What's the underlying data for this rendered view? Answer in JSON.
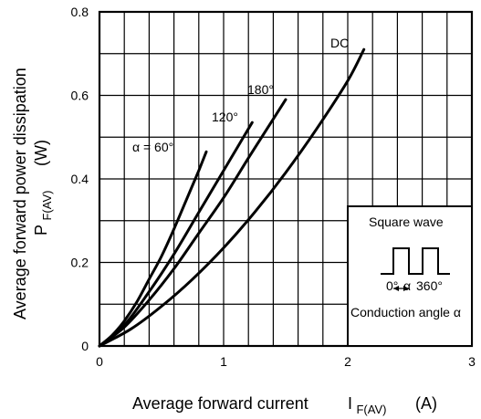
{
  "chart_data": {
    "type": "line",
    "xlabel": "Average forward current",
    "xlabel_symbol": "I",
    "xlabel_sub": "F(AV)",
    "xlabel_unit": "(A)",
    "ylabel_line1": "Average forward power dissipation",
    "ylabel_symbol": "P",
    "ylabel_sub": "F(AV)",
    "ylabel_unit": "(W)",
    "xlim": [
      0,
      3
    ],
    "ylim": [
      0,
      0.8
    ],
    "x_ticks": [
      "0",
      "1",
      "2",
      "3"
    ],
    "y_ticks": [
      "0",
      "0.2",
      "0.4",
      "0.6",
      "0.8"
    ],
    "grid": true,
    "series": [
      {
        "name": "α = 60°",
        "x": [
          0,
          0.1,
          0.2,
          0.3,
          0.4,
          0.5,
          0.6,
          0.7,
          0.8,
          0.86
        ],
        "y": [
          0,
          0.025,
          0.06,
          0.105,
          0.16,
          0.215,
          0.28,
          0.35,
          0.42,
          0.465
        ]
      },
      {
        "name": "120°",
        "x": [
          0,
          0.2,
          0.4,
          0.6,
          0.8,
          1.0,
          1.1,
          1.23
        ],
        "y": [
          0,
          0.05,
          0.13,
          0.22,
          0.32,
          0.42,
          0.47,
          0.535
        ]
      },
      {
        "name": "180°",
        "x": [
          0,
          0.2,
          0.4,
          0.6,
          0.8,
          1.0,
          1.2,
          1.35,
          1.5
        ],
        "y": [
          0,
          0.045,
          0.11,
          0.185,
          0.27,
          0.355,
          0.45,
          0.52,
          0.59
        ]
      },
      {
        "name": "DC",
        "x": [
          0,
          0.25,
          0.5,
          0.75,
          1.0,
          1.25,
          1.5,
          1.75,
          2.0,
          2.13
        ],
        "y": [
          0,
          0.04,
          0.095,
          0.16,
          0.235,
          0.32,
          0.415,
          0.52,
          0.635,
          0.71
        ]
      }
    ],
    "inset": {
      "title": "Square wave",
      "angle_start": "0°",
      "angle_alpha": "α",
      "angle_end": "360°",
      "caption": "Conduction angle α"
    }
  }
}
